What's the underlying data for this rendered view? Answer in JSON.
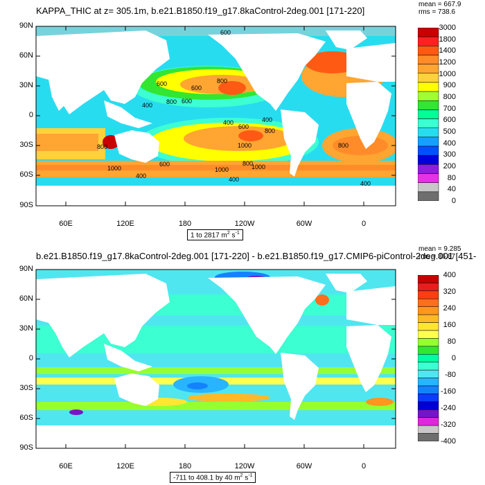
{
  "panel1": {
    "title": "KAPPA_THIC at z= 305.1m, b.e21.B1850.f19_g17.8kaControl-2deg.001 [171-220]",
    "mean": "mean = 667.9",
    "rms": "rms = 738.6",
    "range_label": "1 to 2817 m",
    "range_unit": "2 s",
    "range_exp": "-1",
    "lat_labels": [
      "90N",
      "60N",
      "30N",
      "0",
      "30S",
      "60S",
      "90S"
    ],
    "lon_labels": [
      "60E",
      "120E",
      "180",
      "120W",
      "60W",
      "0"
    ],
    "colorbar_labels": [
      "3000",
      "1800",
      "1400",
      "1200",
      "1000",
      "900",
      "800",
      "700",
      "600",
      "500",
      "400",
      "300",
      "200",
      "80",
      "40",
      "0"
    ],
    "colorbar_colors": [
      "#c80000",
      "#ff2020",
      "#ff5a14",
      "#ff8c28",
      "#ffa532",
      "#ffd23c",
      "#ffff00",
      "#a0ff32",
      "#32e632",
      "#00ff96",
      "#3cffd2",
      "#28dcf0",
      "#14a0ff",
      "#0050ff",
      "#0000dc",
      "#8c1edc",
      "#e632e6",
      "#c8c8c8",
      "#6e6e6e"
    ],
    "contour_labels": [
      "600",
      "600",
      "600",
      "800",
      "400",
      "800",
      "600",
      "400",
      "400",
      "800",
      "600",
      "1000",
      "800",
      "800",
      "1000",
      "800",
      "1000",
      "1000",
      "400",
      "400",
      "400",
      "600"
    ]
  },
  "panel2": {
    "title": "b.e21.B1850.f19_g17.8kaControl-2deg.001 [171-220] - b.e21.B1850.f19_g17.CMIP6-piControl-2deg.001 [451-",
    "mean": "mean = 9.285",
    "rms": "rms = 36.87",
    "range_label": "-711 to 408.1 by 40 m",
    "range_unit": "2 s",
    "range_exp": "-1",
    "lat_labels": [
      "90N",
      "60N",
      "30N",
      "0",
      "30S",
      "60S",
      "90S"
    ],
    "lon_labels": [
      "60E",
      "120E",
      "180",
      "120W",
      "60W",
      "0"
    ],
    "colorbar_labels": [
      "400",
      "320",
      "240",
      "160",
      "80",
      "0",
      "-80",
      "-160",
      "-240",
      "-320",
      "-400"
    ],
    "colorbar_colors": [
      "#c80000",
      "#e61e1e",
      "#ff3c14",
      "#ff6e1e",
      "#ff961e",
      "#ffb928",
      "#ffe632",
      "#ffff50",
      "#96ff32",
      "#32e632",
      "#00ffa0",
      "#3cffd2",
      "#50e6f0",
      "#28b4ff",
      "#1482ff",
      "#0a3cff",
      "#0000d2",
      "#7814c8",
      "#dc28dc",
      "#c8c8c8",
      "#6e6e6e"
    ]
  }
}
